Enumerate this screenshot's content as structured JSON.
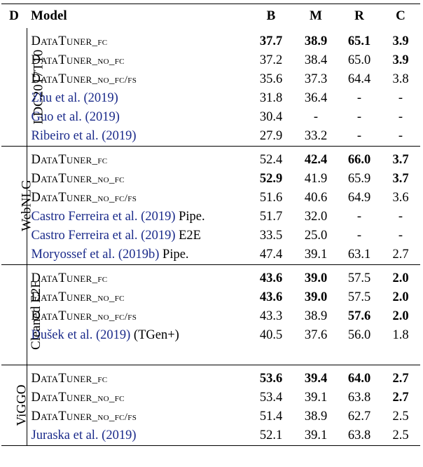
{
  "header": {
    "d": "D",
    "model": "Model",
    "b": "B",
    "m": "M",
    "r": "R",
    "c": "C"
  },
  "groups": [
    {
      "dataset": "LDC2017T10",
      "rows": [
        {
          "model": "DataTuner_fc",
          "cite": false,
          "b": "37.7",
          "m": "38.9",
          "r": "65.1",
          "c": "3.9",
          "bold": [
            "b",
            "m",
            "r",
            "c"
          ]
        },
        {
          "model": "DataTuner_no_fc",
          "cite": false,
          "b": "37.2",
          "m": "38.4",
          "r": "65.0",
          "c": "3.9",
          "bold": [
            "c"
          ]
        },
        {
          "model": "DataTuner_no_fc/fs",
          "cite": false,
          "b": "35.6",
          "m": "37.3",
          "r": "64.4",
          "c": "3.8",
          "bold": []
        },
        {
          "model": "Zhu et al. (2019)",
          "cite": true,
          "b": "31.8",
          "m": "36.4",
          "r": "-",
          "c": "-",
          "bold": []
        },
        {
          "model": "Guo et al. (2019)",
          "cite": true,
          "b": "30.4",
          "m": "-",
          "r": "-",
          "c": "-",
          "bold": []
        },
        {
          "model": "Ribeiro et al. (2019)",
          "cite": true,
          "b": "27.9",
          "m": "33.2",
          "r": "-",
          "c": "-",
          "bold": []
        }
      ]
    },
    {
      "dataset": "WebNLG",
      "rows": [
        {
          "model": "DataTuner_fc",
          "cite": false,
          "b": "52.4",
          "m": "42.4",
          "r": "66.0",
          "c": "3.7",
          "bold": [
            "m",
            "r",
            "c"
          ]
        },
        {
          "model": "DataTuner_no_fc",
          "cite": false,
          "b": "52.9",
          "m": "41.9",
          "r": "65.9",
          "c": "3.7",
          "bold": [
            "b",
            "c"
          ]
        },
        {
          "model": "DataTuner_no_fc/fs",
          "cite": false,
          "b": "51.6",
          "m": "40.6",
          "r": "64.9",
          "c": "3.6",
          "bold": []
        },
        {
          "model": "Castro Ferreira et al. (2019)",
          "suffix": " Pipe.",
          "cite": true,
          "b": "51.7",
          "m": "32.0",
          "r": "-",
          "c": "-",
          "bold": []
        },
        {
          "model": "Castro Ferreira et al. (2019)",
          "suffix": " E2E",
          "cite": true,
          "b": "33.5",
          "m": "25.0",
          "r": "-",
          "c": "-",
          "bold": []
        },
        {
          "model": "Moryossef et al. (2019b)",
          "suffix": " Pipe.",
          "cite": true,
          "b": "47.4",
          "m": "39.1",
          "r": "63.1",
          "c": "2.7",
          "bold": []
        }
      ]
    },
    {
      "dataset": "Cleaned E2E",
      "rows": [
        {
          "model": "DataTuner_fc",
          "cite": false,
          "b": "43.6",
          "m": "39.0",
          "r": "57.5",
          "c": "2.0",
          "bold": [
            "b",
            "m",
            "c"
          ]
        },
        {
          "model": "DataTuner_no_fc",
          "cite": false,
          "b": "43.6",
          "m": "39.0",
          "r": "57.5",
          "c": "2.0",
          "bold": [
            "b",
            "m",
            "c"
          ]
        },
        {
          "model": "DataTuner_no_fc/fs",
          "cite": false,
          "b": "43.3",
          "m": "38.9",
          "r": "57.6",
          "c": "2.0",
          "bold": [
            "r",
            "c"
          ]
        },
        {
          "model": "Dušek et al. (2019)",
          "suffix": " (TGen+)",
          "cite": true,
          "b": "40.5",
          "m": "37.6",
          "r": "56.0",
          "c": "1.8",
          "bold": []
        }
      ]
    },
    {
      "dataset": "ViGGO",
      "rows": [
        {
          "model": "DataTuner_fc",
          "cite": false,
          "b": "53.6",
          "m": "39.4",
          "r": "64.0",
          "c": "2.7",
          "bold": [
            "b",
            "m",
            "r",
            "c"
          ]
        },
        {
          "model": "DataTuner_no_fc",
          "cite": false,
          "b": "53.4",
          "m": "39.1",
          "r": "63.8",
          "c": "2.7",
          "bold": [
            "c"
          ]
        },
        {
          "model": "DataTuner_no_fc/fs",
          "cite": false,
          "b": "51.4",
          "m": "38.9",
          "r": "62.7",
          "c": "2.5",
          "bold": []
        },
        {
          "model": "Juraska et al. (2019)",
          "cite": true,
          "b": "52.1",
          "m": "39.1",
          "r": "63.8",
          "c": "2.5",
          "bold": []
        }
      ]
    }
  ]
}
